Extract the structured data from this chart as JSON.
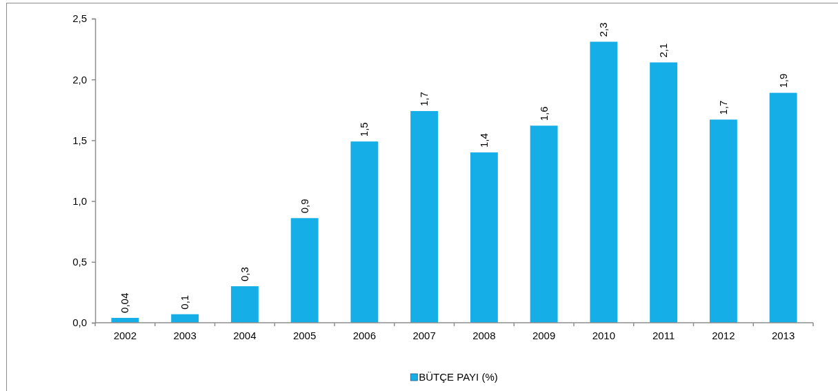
{
  "chart_data": {
    "type": "bar",
    "categories": [
      "2002",
      "2003",
      "2004",
      "2005",
      "2006",
      "2007",
      "2008",
      "2009",
      "2010",
      "2011",
      "2012",
      "2013"
    ],
    "series": [
      {
        "name": "BÜTÇE PAYI (%)",
        "color": "#16aee6",
        "values": [
          0.04,
          0.07,
          0.3,
          0.86,
          1.49,
          1.74,
          1.4,
          1.62,
          2.31,
          2.14,
          1.67,
          1.89
        ],
        "value_labels": [
          "0,04",
          "0,1",
          "0,3",
          "0,9",
          "1,5",
          "1,7",
          "1,4",
          "1,6",
          "2,3",
          "2,1",
          "1,7",
          "1,9"
        ]
      }
    ],
    "ylim": [
      0,
      2.5
    ],
    "yticks": [
      {
        "value": 0,
        "label": "0,0"
      },
      {
        "value": 0.5,
        "label": "0,5"
      },
      {
        "value": 1,
        "label": "1,0"
      },
      {
        "value": 1.5,
        "label": "1,5"
      },
      {
        "value": 2,
        "label": "2,0"
      },
      {
        "value": 2.5,
        "label": "2,5"
      }
    ],
    "legend": "bottom"
  }
}
